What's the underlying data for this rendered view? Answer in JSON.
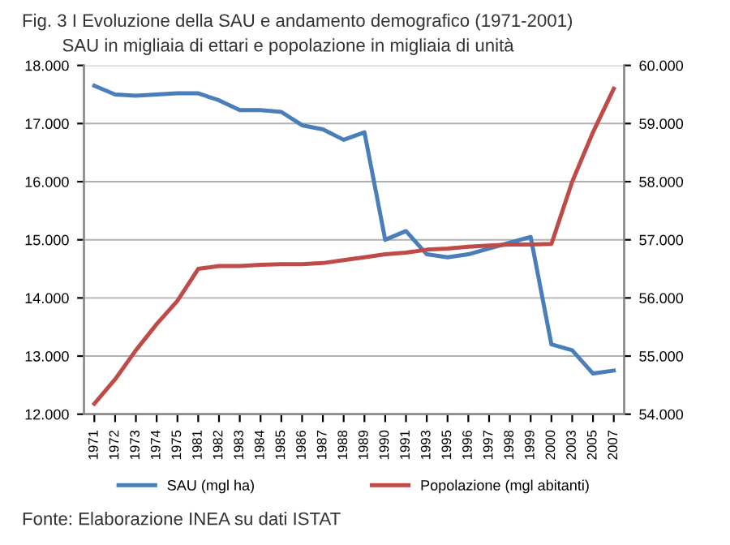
{
  "chart_data": {
    "type": "line",
    "title": "Fig. 3 I Evoluzione della SAU e andamento demografico (1971-2001)",
    "subtitle": "SAU in migliaia di ettari e popolazione in migliaia di unità",
    "categories": [
      "1971",
      "1972",
      "1973",
      "1974",
      "1975",
      "1981",
      "1982",
      "1983",
      "1984",
      "1985",
      "1986",
      "1987",
      "1988",
      "1989",
      "1990",
      "1991",
      "1993",
      "1995",
      "1996",
      "1997",
      "1998",
      "1999",
      "2000",
      "2003",
      "2005",
      "2007"
    ],
    "series": [
      {
        "name": "SAU (mgl ha)",
        "color": "#4a7ebb",
        "values": [
          17650,
          17500,
          17480,
          17500,
          17520,
          17520,
          17400,
          17230,
          17230,
          17200,
          16970,
          16900,
          16720,
          16850,
          15000,
          15150,
          14750,
          14700,
          14750,
          14850,
          14950,
          15050,
          13200,
          13100,
          12700,
          12750
        ]
      },
      {
        "name": "Popolazione (mgl abitanti)",
        "color": "#be4b48",
        "axis": "y2",
        "values": [
          54180,
          54600,
          55100,
          55550,
          55950,
          56500,
          56550,
          56550,
          56570,
          56580,
          56580,
          56600,
          56650,
          56700,
          56750,
          56780,
          56830,
          56850,
          56880,
          56900,
          56920,
          56920,
          56930,
          58000,
          58850,
          59600
        ]
      }
    ],
    "ylim": [
      12000,
      18000
    ],
    "yticks": [
      {
        "value": 12000,
        "label": "12.000"
      },
      {
        "value": 13000,
        "label": "13.000"
      },
      {
        "value": 14000,
        "label": "14.000"
      },
      {
        "value": 15000,
        "label": "15.000"
      },
      {
        "value": 16000,
        "label": "16.000"
      },
      {
        "value": 17000,
        "label": "17.000"
      },
      {
        "value": 18000,
        "label": "18.000"
      }
    ],
    "y2lim": [
      54000,
      60000
    ],
    "y2ticks": [
      {
        "value": 54000,
        "label": "54.000"
      },
      {
        "value": 55000,
        "label": "55.000"
      },
      {
        "value": 56000,
        "label": "56.000"
      },
      {
        "value": 57000,
        "label": "57.000"
      },
      {
        "value": 58000,
        "label": "58.000"
      },
      {
        "value": 59000,
        "label": "59.000"
      },
      {
        "value": 60000,
        "label": "60.000"
      }
    ],
    "grid": "y",
    "legend": "bottom",
    "marker": "none",
    "line_style": "solid",
    "annotations": [
      "Fonte: Elaborazione INEA su dati ISTAT"
    ]
  }
}
